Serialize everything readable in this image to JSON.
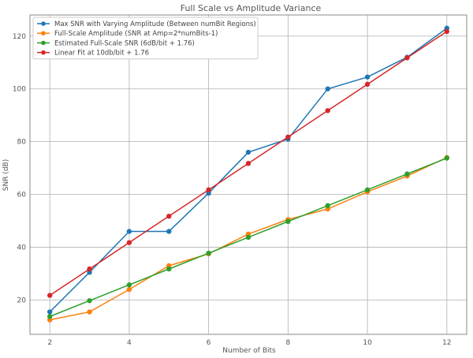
{
  "chart_data": {
    "type": "line",
    "title": "Full Scale vs Amplitude Variance",
    "xlabel": "Number of Bits",
    "ylabel": "SNR (dB)",
    "x": [
      2,
      3,
      4,
      5,
      6,
      7,
      8,
      9,
      10,
      11,
      12
    ],
    "xlim": [
      1.5,
      12.5
    ],
    "ylim": [
      7,
      128
    ],
    "xticks": [
      2,
      4,
      6,
      8,
      10,
      12
    ],
    "yticks": [
      20,
      40,
      60,
      80,
      100,
      120
    ],
    "grid": true,
    "legend_position": "top-left",
    "series": [
      {
        "name": "Max SNR with Varying Amplitude (Between numBit Regions)",
        "color": "#1f77b4",
        "values": [
          15.5,
          30.5,
          46,
          46,
          60.5,
          76,
          81,
          100,
          104.5,
          112,
          123
        ]
      },
      {
        "name": "Full-Scale Amplitude (SNR at Amp=2*numBits-1)",
        "color": "#ff7f0e",
        "values": [
          12.5,
          15.5,
          24,
          33,
          37.5,
          45,
          50.5,
          54.5,
          61,
          67,
          74
        ]
      },
      {
        "name": "Estimated Full-Scale SNR (6dB/bit + 1.76)",
        "color": "#2ca02c",
        "values": [
          13.76,
          19.76,
          25.76,
          31.76,
          37.76,
          43.76,
          49.76,
          55.76,
          61.76,
          67.76,
          73.76
        ]
      },
      {
        "name": "Linear Fit at 10db/bit + 1.76",
        "color": "#d62728",
        "values": [
          21.76,
          31.76,
          41.76,
          51.76,
          61.76,
          71.76,
          81.76,
          91.76,
          101.76,
          111.76,
          121.76
        ]
      }
    ]
  }
}
